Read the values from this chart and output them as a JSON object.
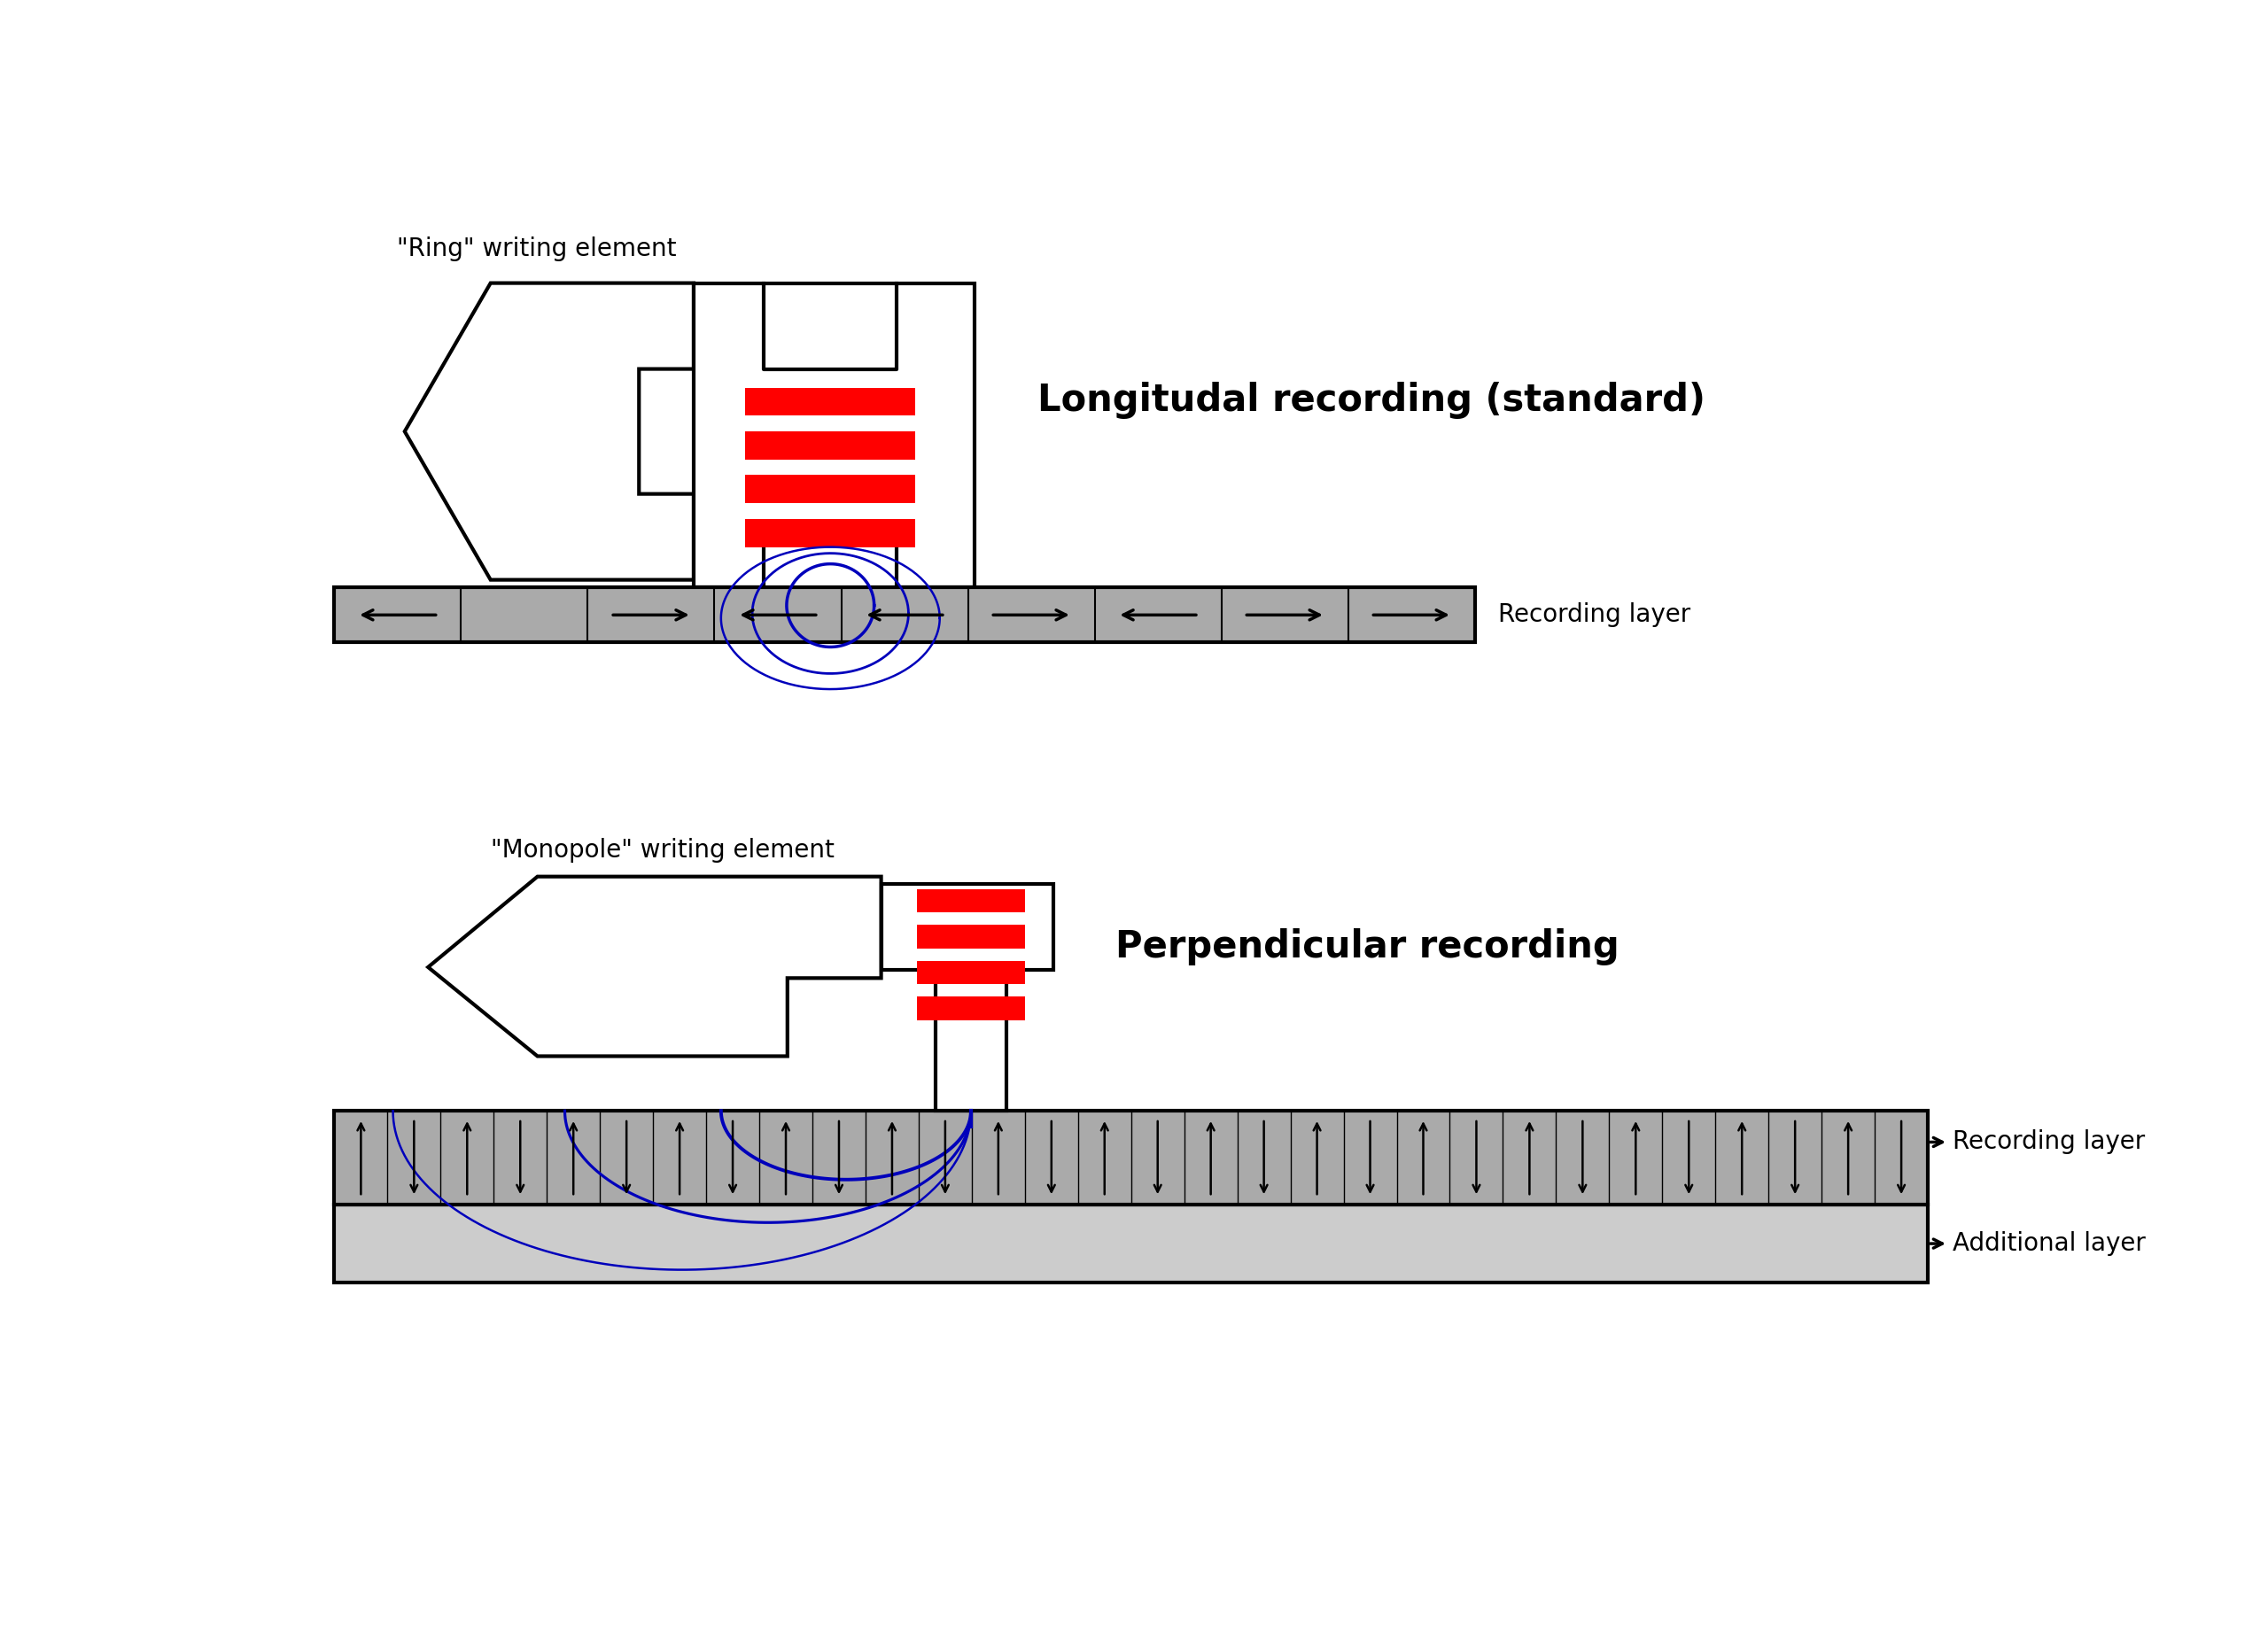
{
  "bg_color": "#ffffff",
  "title1": "Longitudal recording (standard)",
  "title2": "Perpendicular recording",
  "label_ring": "\"Ring\" writing element",
  "label_monopole": "\"Monopole\" writing element",
  "label_recording_layer": "Recording layer",
  "label_additional_layer": "Additional layer",
  "red_color": "#ff0000",
  "blue_color": "#0000bb",
  "black": "#000000",
  "gray": "#aaaaaa",
  "light_gray": "#cccccc",
  "white": "#ffffff"
}
